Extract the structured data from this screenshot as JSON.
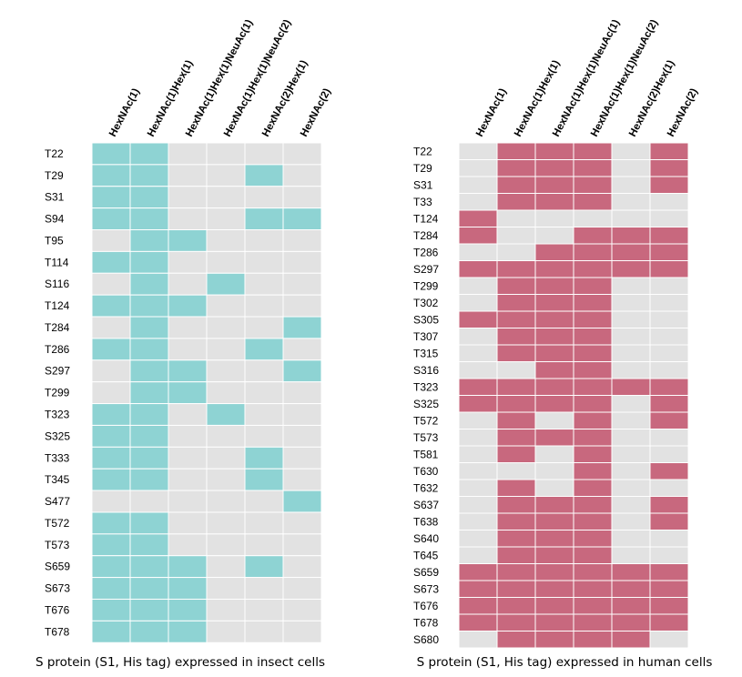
{
  "columns": [
    "HexNAc(1)",
    "HexNAc(1)Hex(1)",
    "HexNAc(1)Hex(1)NeuAc(1)",
    "HexNAc(1)Hex(1)NeuAc(2)",
    "HexNAc(2)Hex(1)",
    "HexNAc(2)"
  ],
  "colors": {
    "insect": "#8ed3d3",
    "human": "#c8687e",
    "empty": "#e2e2e2",
    "grid": "#ffffff"
  },
  "chart_data": [
    {
      "type": "heatmap",
      "title": "",
      "caption": "S protein (S1, His tag) expressed in insect cells",
      "columns": [
        "HexNAc(1)",
        "HexNAc(1)Hex(1)",
        "HexNAc(1)Hex(1)NeuAc(1)",
        "HexNAc(1)Hex(1)NeuAc(2)",
        "HexNAc(2)Hex(1)",
        "HexNAc(2)"
      ],
      "rows": [
        "T22",
        "T29",
        "S31",
        "S94",
        "T95",
        "T114",
        "S116",
        "T124",
        "T284",
        "T286",
        "S297",
        "T299",
        "T323",
        "S325",
        "T333",
        "T345",
        "S477",
        "T572",
        "T573",
        "S659",
        "S673",
        "T676",
        "T678"
      ],
      "values": [
        [
          1,
          1,
          0,
          0,
          0,
          0
        ],
        [
          1,
          1,
          0,
          0,
          1,
          0
        ],
        [
          1,
          1,
          0,
          0,
          0,
          0
        ],
        [
          1,
          1,
          0,
          0,
          1,
          1
        ],
        [
          0,
          1,
          1,
          0,
          0,
          0
        ],
        [
          1,
          1,
          0,
          0,
          0,
          0
        ],
        [
          0,
          1,
          0,
          1,
          0,
          0
        ],
        [
          1,
          1,
          1,
          0,
          0,
          0
        ],
        [
          0,
          1,
          0,
          0,
          0,
          1
        ],
        [
          1,
          1,
          0,
          0,
          1,
          0
        ],
        [
          0,
          1,
          1,
          0,
          0,
          1
        ],
        [
          0,
          1,
          1,
          0,
          0,
          0
        ],
        [
          1,
          1,
          0,
          1,
          0,
          0
        ],
        [
          1,
          1,
          0,
          0,
          0,
          0
        ],
        [
          1,
          1,
          0,
          0,
          1,
          0
        ],
        [
          1,
          1,
          0,
          0,
          1,
          0
        ],
        [
          0,
          0,
          0,
          0,
          0,
          1
        ],
        [
          1,
          1,
          0,
          0,
          0,
          0
        ],
        [
          1,
          1,
          0,
          0,
          0,
          0
        ],
        [
          1,
          1,
          1,
          0,
          1,
          0
        ],
        [
          1,
          1,
          1,
          0,
          0,
          0
        ],
        [
          1,
          1,
          1,
          0,
          0,
          0
        ],
        [
          1,
          1,
          1,
          0,
          0,
          0
        ]
      ]
    },
    {
      "type": "heatmap",
      "title": "",
      "caption": "S protein (S1, His tag) expressed in human cells",
      "columns": [
        "HexNAc(1)",
        "HexNAc(1)Hex(1)",
        "HexNAc(1)Hex(1)NeuAc(1)",
        "HexNAc(1)Hex(1)NeuAc(2)",
        "HexNAc(2)Hex(1)",
        "HexNAc(2)"
      ],
      "rows": [
        "T22",
        "T29",
        "S31",
        "T33",
        "T124",
        "T284",
        "T286",
        "S297",
        "T299",
        "T302",
        "S305",
        "T307",
        "T315",
        "S316",
        "T323",
        "S325",
        "T572",
        "T573",
        "T581",
        "T630",
        "T632",
        "S637",
        "T638",
        "S640",
        "T645",
        "S659",
        "S673",
        "T676",
        "T678",
        "S680"
      ],
      "values": [
        [
          0,
          1,
          1,
          1,
          0,
          1
        ],
        [
          0,
          1,
          1,
          1,
          0,
          1
        ],
        [
          0,
          1,
          1,
          1,
          0,
          1
        ],
        [
          0,
          1,
          1,
          1,
          0,
          0
        ],
        [
          1,
          0,
          0,
          0,
          0,
          0
        ],
        [
          1,
          0,
          0,
          1,
          1,
          1
        ],
        [
          0,
          0,
          1,
          1,
          1,
          1
        ],
        [
          1,
          1,
          1,
          1,
          1,
          1
        ],
        [
          0,
          1,
          1,
          1,
          0,
          0
        ],
        [
          0,
          1,
          1,
          1,
          0,
          0
        ],
        [
          1,
          1,
          1,
          1,
          0,
          0
        ],
        [
          0,
          1,
          1,
          1,
          0,
          0
        ],
        [
          0,
          1,
          1,
          1,
          0,
          0
        ],
        [
          0,
          0,
          1,
          1,
          0,
          0
        ],
        [
          1,
          1,
          1,
          1,
          1,
          1
        ],
        [
          1,
          1,
          1,
          1,
          0,
          1
        ],
        [
          0,
          1,
          0,
          1,
          0,
          1
        ],
        [
          0,
          1,
          1,
          1,
          0,
          0
        ],
        [
          0,
          1,
          0,
          1,
          0,
          0
        ],
        [
          0,
          0,
          0,
          1,
          0,
          1
        ],
        [
          0,
          1,
          0,
          1,
          0,
          0
        ],
        [
          0,
          1,
          1,
          1,
          0,
          1
        ],
        [
          0,
          1,
          1,
          1,
          0,
          1
        ],
        [
          0,
          1,
          1,
          1,
          0,
          0
        ],
        [
          0,
          1,
          1,
          1,
          0,
          0
        ],
        [
          1,
          1,
          1,
          1,
          1,
          1
        ],
        [
          1,
          1,
          1,
          1,
          1,
          1
        ],
        [
          1,
          1,
          1,
          1,
          1,
          1
        ],
        [
          1,
          1,
          1,
          1,
          1,
          1
        ],
        [
          0,
          1,
          1,
          1,
          1,
          0
        ]
      ]
    }
  ]
}
